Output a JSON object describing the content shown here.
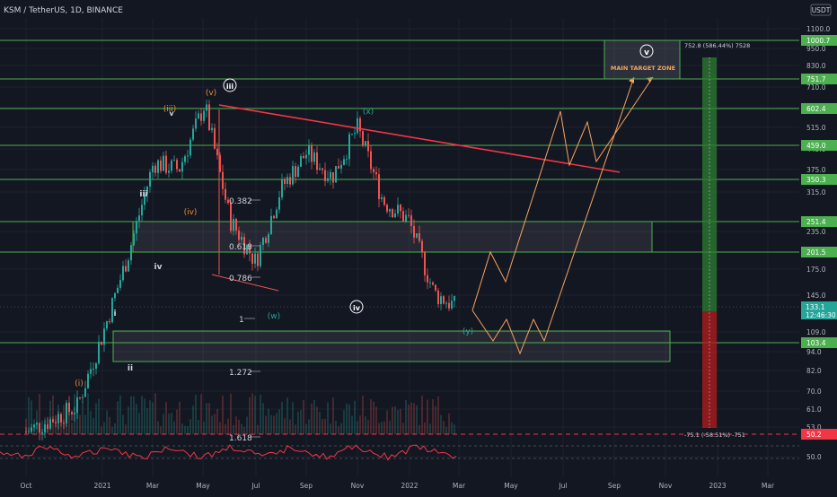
{
  "header": {
    "symbol_title": "KSM / TetherUS, 1D, BINANCE",
    "currency": "USDT"
  },
  "colors": {
    "background": "#131722",
    "candle_up": "#26a69a",
    "candle_down": "#ef5350",
    "zone_line": "#4caf50",
    "trendline": "#f23645",
    "projection": "#f7a35c",
    "wave_orange": "#e08f3a",
    "wave_teal": "#26a69a",
    "rsi_line": "#f23645",
    "target_green": "#2e7d32",
    "target_red": "#b71c1c"
  },
  "axes": {
    "price_ticks": [
      "1100.0",
      "950.0",
      "830.0",
      "710.0",
      "615.0",
      "515.0",
      "445.0",
      "375.0",
      "315.0",
      "235.0",
      "175.0",
      "145.0",
      "109.0",
      "94.0",
      "82.0",
      "70.0",
      "61.0",
      "53.0",
      "50.0"
    ],
    "time_ticks": [
      "Oct",
      "2021",
      "Mar",
      "May",
      "Jul",
      "Sep",
      "Nov",
      "2022",
      "Mar",
      "May",
      "Jul",
      "Sep",
      "Nov",
      "2023",
      "Mar"
    ]
  },
  "price_labels": [
    {
      "text": "1000.7",
      "color": "#4caf50"
    },
    {
      "text": "751.7",
      "color": "#4caf50"
    },
    {
      "text": "602.4",
      "color": "#4caf50"
    },
    {
      "text": "459.0",
      "color": "#4caf50"
    },
    {
      "text": "350.3",
      "color": "#4caf50"
    },
    {
      "text": "251.4",
      "color": "#4caf50"
    },
    {
      "text": "201.5",
      "color": "#4caf50"
    },
    {
      "text": "103.4",
      "color": "#4caf50"
    },
    {
      "text": "50.2",
      "color": "#f23645"
    }
  ],
  "current_price": {
    "value": "133.1",
    "countdown": "12:46:30"
  },
  "fib_labels": [
    "0.382",
    "0.618",
    "0.786",
    "1",
    "1.272",
    "1.618"
  ],
  "wave_labels": {
    "orange": [
      "(i)",
      "(iii)",
      "(iv)",
      "(v)"
    ],
    "white": [
      "i",
      "ii",
      "iii",
      "iv",
      "v"
    ],
    "circled": [
      "iii",
      "iv",
      "v"
    ],
    "teal": [
      "(w)",
      "(x)",
      "(y)"
    ]
  },
  "target_zone": {
    "label": "MAIN TARGET ZONE",
    "wave": "v"
  },
  "measure": {
    "top": "752.8 (586.44%) 7528",
    "bottom": "-75.1 (-58.51%) -751"
  },
  "chart_data": {
    "type": "candlestick",
    "title": "KSM / TetherUS, 1D, BINANCE",
    "y_scale": "log",
    "ylim": [
      45,
      1150
    ],
    "x_range": [
      "2020-09",
      "2023-04"
    ],
    "support_resistance_levels": [
      1000.7,
      751.7,
      602.4,
      459.0,
      350.3,
      251.4,
      201.5,
      103.4,
      50.2
    ],
    "zones": [
      {
        "low": 201.5,
        "high": 251.4
      },
      {
        "low": 88,
        "high": 113
      }
    ],
    "close_path": [
      {
        "x": "2020-10",
        "y": 53
      },
      {
        "x": "2020-11",
        "y": 58
      },
      {
        "x": "2020-12",
        "y": 64
      },
      {
        "x": "2021-01",
        "y": 110
      },
      {
        "x": "2021-02",
        "y": 200
      },
      {
        "x": "2021-03",
        "y": 400
      },
      {
        "x": "2021-04",
        "y": 380
      },
      {
        "x": "2021-05",
        "y": 620
      },
      {
        "x": "2021-06",
        "y": 260
      },
      {
        "x": "2021-07",
        "y": 190
      },
      {
        "x": "2021-08",
        "y": 330
      },
      {
        "x": "2021-09",
        "y": 430
      },
      {
        "x": "2021-10",
        "y": 360
      },
      {
        "x": "2021-11",
        "y": 520
      },
      {
        "x": "2021-12",
        "y": 300
      },
      {
        "x": "2022-01",
        "y": 260
      },
      {
        "x": "2022-02",
        "y": 150
      },
      {
        "x": "2022-03",
        "y": 133.1
      }
    ],
    "current_price": 133.1
  }
}
